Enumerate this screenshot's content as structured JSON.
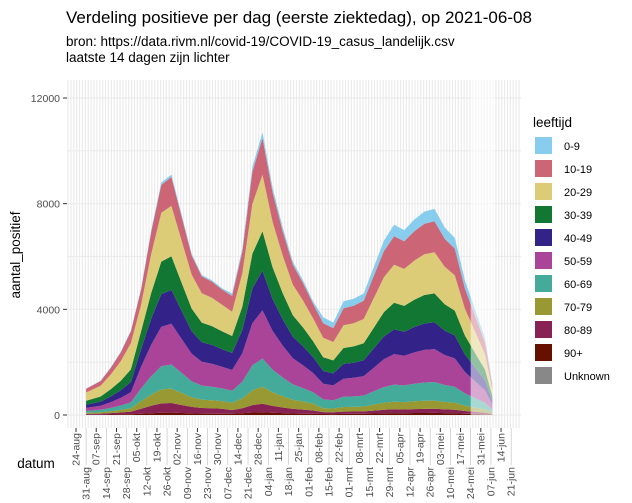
{
  "chart_data": {
    "type": "area",
    "stacked": true,
    "title": "Verdeling positieve per dag (eerste ziektedag), op 2021-06-08",
    "subtitle_lines": [
      "bron: https://data.rivm.nl/covid-19/COVID-19_casus_landelijk.csv",
      "laatste 14 dagen zijn lichter"
    ],
    "xlabel": "datum",
    "ylabel": "aantal_positief",
    "ylim": [
      0,
      12600
    ],
    "y_ticks": [
      "0",
      "4000",
      "8000",
      "12000"
    ],
    "y_tick_values": [
      0,
      4000,
      8000,
      12000
    ],
    "x_ticks": [
      "24-aug",
      "31-aug",
      "07-sep",
      "14-sep",
      "21-sep",
      "28-sep",
      "05-okt",
      "12-okt",
      "19-okt",
      "26-okt",
      "02-nov",
      "09-nov",
      "16-nov",
      "23-nov",
      "30-nov",
      "07-dec",
      "14-dec",
      "21-dec",
      "28-dec",
      "04-jan",
      "11-jan",
      "18-jan",
      "25-jan",
      "01-feb",
      "08-feb",
      "15-feb",
      "22-feb",
      "01-mrt",
      "08-mrt",
      "15-mrt",
      "22-mrt",
      "29-mrt",
      "05-apr",
      "12-apr",
      "19-apr",
      "26-apr",
      "03-mei",
      "10-mei",
      "17-mei",
      "24-mei",
      "31-mei",
      "07-jun",
      "14-jun",
      "21-jun"
    ],
    "x_weeks": [
      "31-aug",
      "07-sep",
      "14-sep",
      "21-sep",
      "28-sep",
      "05-okt",
      "12-okt",
      "19-okt",
      "26-okt",
      "02-nov",
      "09-nov",
      "16-nov",
      "23-nov",
      "30-nov",
      "07-dec",
      "14-dec",
      "21-dec",
      "28-dec",
      "04-jan",
      "11-jan",
      "18-jan",
      "25-jan",
      "01-feb",
      "08-feb",
      "15-feb",
      "22-feb",
      "01-mrt",
      "08-mrt",
      "15-mrt",
      "22-mrt",
      "29-mrt",
      "05-apr",
      "12-apr",
      "19-apr",
      "26-apr",
      "03-mei",
      "10-mei",
      "17-mei",
      "24-mei",
      "31-mei",
      "07-jun"
    ],
    "daily_total_by_week": [
      1000,
      1300,
      1800,
      2400,
      3200,
      4800,
      7000,
      8800,
      9100,
      7600,
      6100,
      5300,
      5100,
      4800,
      4600,
      6300,
      9400,
      10700,
      8600,
      7100,
      5800,
      5100,
      4300,
      3700,
      3500,
      4300,
      4400,
      4600,
      5600,
      6600,
      7200,
      7000,
      7400,
      7700,
      7800,
      7100,
      6700,
      5100,
      4000,
      2900,
      1200
    ],
    "lighter_from_week": "24-mei",
    "legend_title": "leeftijd",
    "legend_position": "right",
    "groups": [
      {
        "name": "0-9",
        "color": "#88ccee",
        "share_pct": [
          1,
          1,
          1,
          1,
          1,
          1,
          1,
          1,
          1,
          1,
          1,
          1,
          1,
          1,
          2,
          2,
          2,
          2,
          2,
          2,
          2,
          2,
          2,
          6,
          6,
          6,
          6,
          6,
          6,
          6,
          6,
          6,
          6,
          6,
          6,
          6,
          6,
          6,
          6,
          6,
          6
        ]
      },
      {
        "name": "10-19",
        "color": "#cc6677",
        "share_pct": [
          14,
          14,
          14,
          14,
          14,
          12,
          12,
          12,
          12,
          12,
          12,
          12,
          12,
          12,
          13,
          13,
          13,
          13,
          13,
          13,
          13,
          13,
          13,
          15,
          15,
          15,
          15,
          15,
          15,
          15,
          15,
          15,
          15,
          15,
          15,
          15,
          15,
          15,
          15,
          15,
          15
        ]
      },
      {
        "name": "20-29",
        "color": "#ddcc77",
        "share_pct": [
          31,
          31,
          31,
          31,
          31,
          21,
          21,
          21,
          21,
          21,
          21,
          21,
          21,
          21,
          20,
          20,
          20,
          20,
          20,
          20,
          20,
          20,
          20,
          20,
          20,
          20,
          20,
          20,
          20,
          20,
          20,
          20,
          20,
          20,
          20,
          20,
          20,
          20,
          20,
          20,
          20
        ]
      },
      {
        "name": "30-39",
        "color": "#117733",
        "share_pct": [
          15,
          15,
          15,
          15,
          15,
          14,
          14,
          14,
          14,
          14,
          14,
          14,
          14,
          14,
          14,
          14,
          14,
          14,
          14,
          14,
          14,
          14,
          14,
          14,
          14,
          14,
          14,
          14,
          14,
          14,
          14,
          14,
          14,
          14,
          14,
          14,
          14,
          14,
          14,
          14,
          14
        ]
      },
      {
        "name": "40-49",
        "color": "#332288",
        "share_pct": [
          12,
          12,
          12,
          12,
          12,
          14,
          14,
          14,
          14,
          14,
          14,
          14,
          14,
          14,
          14,
          14,
          14,
          14,
          14,
          14,
          14,
          14,
          14,
          13,
          13,
          13,
          13,
          13,
          13,
          13,
          13,
          13,
          13,
          13,
          13,
          13,
          13,
          13,
          13,
          13,
          13
        ]
      },
      {
        "name": "50-59",
        "color": "#aa4499",
        "share_pct": [
          12,
          12,
          12,
          12,
          12,
          17,
          17,
          17,
          17,
          17,
          17,
          17,
          17,
          17,
          17,
          17,
          17,
          17,
          17,
          17,
          17,
          17,
          17,
          16,
          16,
          16,
          16,
          16,
          16,
          16,
          16,
          16,
          16,
          16,
          16,
          16,
          16,
          16,
          16,
          16,
          16
        ]
      },
      {
        "name": "60-69",
        "color": "#44aa99",
        "share_pct": [
          7,
          7,
          7,
          7,
          7,
          10,
          10,
          10,
          10,
          10,
          10,
          10,
          10,
          10,
          10,
          10,
          10,
          10,
          10,
          10,
          10,
          10,
          10,
          9,
          9,
          9,
          9,
          9,
          9,
          9,
          9,
          9,
          9,
          9,
          9,
          9,
          9,
          9,
          9,
          9,
          9
        ]
      },
      {
        "name": "70-79",
        "color": "#999933",
        "share_pct": [
          4,
          4,
          4,
          4,
          4,
          6,
          6,
          6,
          6,
          6,
          6,
          6,
          6,
          6,
          6,
          6,
          6,
          6,
          6,
          6,
          6,
          6,
          6,
          4,
          4,
          4,
          4,
          4,
          4,
          4,
          4,
          4,
          4,
          4,
          4,
          4,
          4,
          4,
          4,
          4,
          4
        ]
      },
      {
        "name": "80-89",
        "color": "#882255",
        "share_pct": [
          3,
          3,
          3,
          3,
          3,
          4,
          4,
          4,
          4,
          4,
          4,
          4,
          4,
          4,
          3,
          3,
          3,
          3,
          3,
          3,
          3,
          3,
          3,
          2,
          2,
          2,
          2,
          2,
          2,
          2,
          2,
          2,
          2,
          2,
          2,
          2,
          2,
          2,
          2,
          2,
          2
        ]
      },
      {
        "name": "90+",
        "color": "#661100",
        "share_pct": [
          1,
          1,
          1,
          1,
          1,
          1,
          1,
          1,
          1,
          1,
          1,
          1,
          1,
          1,
          1,
          1,
          1,
          1,
          1,
          1,
          1,
          1,
          1,
          1,
          1,
          1,
          1,
          1,
          1,
          1,
          1,
          1,
          1,
          1,
          1,
          1,
          1,
          1,
          1,
          1,
          1
        ]
      },
      {
        "name": "Unknown",
        "color": "#888888",
        "share_pct": [
          0,
          0,
          0,
          0,
          0,
          0,
          0,
          0,
          0,
          0,
          0,
          0,
          0,
          0,
          0,
          0,
          0,
          0,
          0,
          0,
          0,
          0,
          0,
          0,
          0,
          0,
          0,
          0,
          0,
          0,
          0,
          0,
          0,
          0,
          0,
          0,
          0,
          0,
          0,
          0,
          0
        ]
      }
    ]
  }
}
